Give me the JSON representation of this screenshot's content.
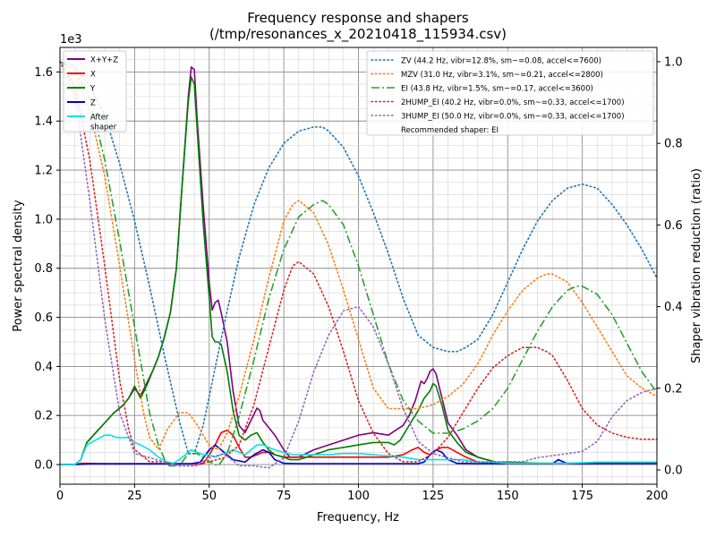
{
  "chart_data": {
    "type": "line",
    "title": "Frequency response and shapers",
    "subtitle": "(/tmp/resonances_x_20210418_115934.csv)",
    "xlabel": "Frequency, Hz",
    "ylabel": "Power spectral density",
    "y2label": "Shaper vibration reduction (ratio)",
    "y_scale_label": "1e3",
    "xlim": [
      0,
      200
    ],
    "ylim": [
      -0.08,
      1.7
    ],
    "y2lim": [
      -0.035,
      1.035
    ],
    "x_ticks": [
      0,
      25,
      50,
      75,
      100,
      125,
      150,
      175,
      200
    ],
    "x_tick_labels": [
      "0",
      "25",
      "50",
      "75",
      "100",
      "125",
      "150",
      "175",
      "200"
    ],
    "y_ticks": [
      0,
      0.2,
      0.4,
      0.6,
      0.8,
      1.0,
      1.2,
      1.4,
      1.6
    ],
    "y_tick_labels": [
      "0.0",
      "0.2",
      "0.4",
      "0.6",
      "0.8",
      "1.0",
      "1.2",
      "1.4",
      "1.6"
    ],
    "y2_ticks": [
      0,
      0.2,
      0.4,
      0.6,
      0.8,
      1.0
    ],
    "y2_tick_labels": [
      "0.0",
      "0.2",
      "0.4",
      "0.6",
      "0.8",
      "1.0"
    ],
    "grid": true,
    "legend_left_placement": "top-left",
    "legend_right_placement": "top-right",
    "psd_series": [
      {
        "name": "X+Y+Z",
        "color": "#800080",
        "style": "solid",
        "x": [
          0,
          5,
          7,
          9,
          12,
          15,
          18,
          21,
          23,
          25,
          27,
          29,
          31,
          33,
          35,
          37,
          39,
          41,
          43,
          44,
          45,
          46,
          48,
          50,
          51,
          52,
          53,
          54,
          56,
          58,
          60,
          62,
          64,
          66,
          67,
          68,
          70,
          72,
          75,
          77,
          80,
          85,
          90,
          95,
          100,
          105,
          110,
          115,
          117,
          119,
          120,
          121,
          122,
          123,
          124,
          125,
          126,
          128,
          130,
          133,
          136,
          140,
          143,
          146,
          150,
          160,
          170,
          180,
          200
        ],
        "y": [
          0,
          0,
          0.02,
          0.09,
          0.13,
          0.17,
          0.21,
          0.24,
          0.27,
          0.31,
          0.28,
          0.33,
          0.38,
          0.44,
          0.52,
          0.62,
          0.8,
          1.15,
          1.5,
          1.62,
          1.61,
          1.4,
          1.05,
          0.74,
          0.63,
          0.66,
          0.67,
          0.62,
          0.5,
          0.3,
          0.16,
          0.13,
          0.18,
          0.23,
          0.22,
          0.18,
          0.15,
          0.12,
          0.06,
          0.03,
          0.03,
          0.06,
          0.08,
          0.1,
          0.12,
          0.13,
          0.12,
          0.16,
          0.2,
          0.26,
          0.3,
          0.34,
          0.33,
          0.35,
          0.38,
          0.39,
          0.37,
          0.27,
          0.17,
          0.12,
          0.06,
          0.03,
          0.02,
          0.01,
          0.01,
          0.005,
          0.005,
          0.005,
          0.005
        ]
      },
      {
        "name": "X",
        "color": "#ff0000",
        "style": "solid",
        "x": [
          0,
          5,
          7,
          9,
          12,
          15,
          20,
          25,
          30,
          35,
          38,
          40,
          42,
          44,
          46,
          48,
          50,
          52,
          54,
          56,
          58,
          60,
          62,
          64,
          66,
          68,
          70,
          72,
          75,
          80,
          85,
          90,
          95,
          100,
          105,
          110,
          115,
          118,
          120,
          122,
          124,
          126,
          128,
          130,
          133,
          136,
          140,
          145,
          150,
          160,
          170,
          200
        ],
        "y": [
          0,
          0,
          0.005,
          0.005,
          0.004,
          0.003,
          0.003,
          0.003,
          0.003,
          0.003,
          0.003,
          0.003,
          0.003,
          0.003,
          0.003,
          0.005,
          0.04,
          0.08,
          0.13,
          0.14,
          0.12,
          0.07,
          0.03,
          0.03,
          0.04,
          0.05,
          0.05,
          0.04,
          0.03,
          0.03,
          0.03,
          0.03,
          0.03,
          0.03,
          0.03,
          0.03,
          0.04,
          0.06,
          0.07,
          0.05,
          0.04,
          0.06,
          0.07,
          0.07,
          0.05,
          0.03,
          0.01,
          0.005,
          0.004,
          0.004,
          0.004,
          0.004
        ]
      },
      {
        "name": "Y",
        "color": "#008000",
        "style": "solid",
        "x": [
          0,
          5,
          7,
          9,
          12,
          15,
          18,
          21,
          23,
          25,
          27,
          29,
          31,
          33,
          35,
          37,
          39,
          41,
          43,
          44,
          45,
          46,
          48,
          50,
          51,
          52,
          53,
          54,
          56,
          58,
          60,
          62,
          64,
          66,
          68,
          70,
          72,
          75,
          77,
          80,
          85,
          90,
          95,
          100,
          105,
          110,
          112,
          114,
          116,
          118,
          120,
          122,
          124,
          125,
          126,
          128,
          130,
          133,
          136,
          140,
          143,
          146,
          150,
          160,
          170,
          180,
          200
        ],
        "y": [
          0,
          0,
          0.02,
          0.09,
          0.13,
          0.17,
          0.21,
          0.24,
          0.27,
          0.32,
          0.27,
          0.32,
          0.38,
          0.44,
          0.52,
          0.62,
          0.8,
          1.15,
          1.48,
          1.58,
          1.55,
          1.36,
          0.98,
          0.68,
          0.52,
          0.5,
          0.5,
          0.49,
          0.38,
          0.22,
          0.12,
          0.1,
          0.12,
          0.13,
          0.09,
          0.06,
          0.04,
          0.03,
          0.02,
          0.02,
          0.04,
          0.06,
          0.07,
          0.08,
          0.09,
          0.09,
          0.08,
          0.1,
          0.14,
          0.18,
          0.22,
          0.27,
          0.3,
          0.33,
          0.32,
          0.24,
          0.14,
          0.09,
          0.05,
          0.03,
          0.02,
          0.01,
          0.01,
          0.005,
          0.005,
          0.005,
          0.005
        ]
      },
      {
        "name": "Z",
        "color": "#0000cd",
        "style": "solid",
        "x": [
          0,
          5,
          10,
          20,
          30,
          40,
          44,
          47,
          50,
          52,
          55,
          58,
          62,
          65,
          68,
          70,
          72,
          75,
          80,
          90,
          100,
          110,
          120,
          122,
          124,
          126,
          128,
          130,
          133,
          140,
          160,
          165,
          167,
          170,
          200
        ],
        "y": [
          0,
          0,
          0.003,
          0.003,
          0.003,
          0.003,
          0.003,
          0.01,
          0.06,
          0.08,
          0.05,
          0.02,
          0.01,
          0.04,
          0.06,
          0.05,
          0.02,
          0.005,
          0.004,
          0.004,
          0.004,
          0.004,
          0.004,
          0.01,
          0.04,
          0.06,
          0.05,
          0.02,
          0.005,
          0.004,
          0.004,
          0.004,
          0.02,
          0.004,
          0.004
        ]
      },
      {
        "name": "After\nshaper",
        "color": "#00e5e5",
        "style": "solid",
        "x": [
          0,
          5,
          7,
          9,
          12,
          15,
          17,
          19,
          21,
          23,
          25,
          27,
          30,
          33,
          36,
          38,
          40,
          42,
          44,
          46,
          48,
          50,
          52,
          54,
          56,
          58,
          60,
          62,
          64,
          66,
          68,
          70,
          72,
          75,
          78,
          80,
          85,
          90,
          95,
          100,
          105,
          110,
          115,
          120,
          125,
          130,
          135,
          140,
          145,
          150,
          160,
          170,
          180,
          190,
          200
        ],
        "y": [
          0,
          0,
          0.02,
          0.08,
          0.1,
          0.12,
          0.12,
          0.11,
          0.11,
          0.11,
          0.09,
          0.08,
          0.06,
          0.03,
          0.01,
          0.005,
          0.02,
          0.04,
          0.06,
          0.05,
          0.04,
          0.04,
          0.03,
          0.04,
          0.05,
          0.06,
          0.05,
          0.04,
          0.06,
          0.08,
          0.08,
          0.07,
          0.06,
          0.05,
          0.04,
          0.04,
          0.04,
          0.04,
          0.045,
          0.045,
          0.04,
          0.035,
          0.03,
          0.02,
          0.02,
          0.02,
          0.02,
          0.01,
          0.01,
          0.005,
          0.005,
          0.005,
          0.01,
          0.01,
          0.01
        ]
      }
    ],
    "shaper_series": [
      {
        "name": "ZV (44.2 Hz, vibr=12.8%, sm~=0.08, accel<=7600)",
        "color": "#1f77b4",
        "style": "dotted",
        "x": [
          0,
          5,
          10,
          15,
          20,
          25,
          30,
          35,
          40,
          43,
          45,
          48,
          52,
          56,
          60,
          65,
          70,
          75,
          80,
          85,
          88,
          90,
          95,
          100,
          105,
          110,
          115,
          120,
          125,
          130,
          133,
          136,
          140,
          145,
          150,
          155,
          160,
          165,
          170,
          175,
          180,
          185,
          190,
          195,
          200
        ],
        "y": [
          1.0,
          0.99,
          0.94,
          0.87,
          0.75,
          0.61,
          0.45,
          0.28,
          0.12,
          0.04,
          0.04,
          0.11,
          0.25,
          0.39,
          0.52,
          0.65,
          0.74,
          0.8,
          0.83,
          0.84,
          0.84,
          0.83,
          0.79,
          0.72,
          0.63,
          0.53,
          0.42,
          0.33,
          0.3,
          0.29,
          0.29,
          0.3,
          0.32,
          0.38,
          0.46,
          0.54,
          0.61,
          0.66,
          0.69,
          0.7,
          0.69,
          0.65,
          0.6,
          0.54,
          0.47
        ]
      },
      {
        "name": "MZV (31.0 Hz, vibr=3.1%, sm~=0.21, accel<=2800)",
        "color": "#ff7f0e",
        "style": "dotted",
        "x": [
          0,
          5,
          10,
          15,
          20,
          25,
          28,
          30,
          33,
          36,
          40,
          43,
          46,
          50,
          53,
          56,
          60,
          65,
          70,
          75,
          78,
          80,
          85,
          90,
          95,
          100,
          105,
          110,
          115,
          120,
          125,
          130,
          135,
          140,
          145,
          150,
          155,
          160,
          163,
          165,
          170,
          175,
          180,
          185,
          190,
          195,
          200
        ],
        "y": [
          1.0,
          0.97,
          0.88,
          0.72,
          0.5,
          0.27,
          0.14,
          0.08,
          0.05,
          0.1,
          0.14,
          0.14,
          0.11,
          0.06,
          0.05,
          0.09,
          0.18,
          0.32,
          0.47,
          0.61,
          0.65,
          0.66,
          0.63,
          0.55,
          0.44,
          0.32,
          0.2,
          0.15,
          0.15,
          0.15,
          0.16,
          0.18,
          0.21,
          0.26,
          0.33,
          0.39,
          0.44,
          0.47,
          0.48,
          0.48,
          0.46,
          0.41,
          0.35,
          0.29,
          0.23,
          0.2,
          0.18
        ]
      },
      {
        "name": "EI (43.8 Hz, vibr=1.5%, sm~=0.17, accel<=3600)",
        "color": "#2ca02c",
        "style": "dashdot",
        "x": [
          0,
          5,
          10,
          15,
          20,
          25,
          30,
          33,
          36,
          40,
          43,
          46,
          50,
          53,
          56,
          60,
          65,
          70,
          75,
          80,
          85,
          88,
          90,
          95,
          100,
          105,
          110,
          115,
          120,
          125,
          130,
          135,
          140,
          145,
          150,
          155,
          160,
          165,
          170,
          173,
          175,
          180,
          185,
          190,
          195,
          200
        ],
        "y": [
          1.0,
          0.98,
          0.91,
          0.76,
          0.56,
          0.35,
          0.14,
          0.06,
          0.01,
          0.01,
          0.04,
          0.04,
          0.02,
          0.01,
          0.04,
          0.13,
          0.27,
          0.42,
          0.54,
          0.62,
          0.65,
          0.66,
          0.65,
          0.6,
          0.5,
          0.38,
          0.26,
          0.17,
          0.12,
          0.09,
          0.09,
          0.1,
          0.12,
          0.15,
          0.2,
          0.27,
          0.34,
          0.4,
          0.44,
          0.45,
          0.45,
          0.43,
          0.38,
          0.31,
          0.24,
          0.19
        ]
      },
      {
        "name": "2HUMP_EI (40.2 Hz, vibr=0.0%, sm~=0.33, accel<=1700)",
        "color": "#d62728",
        "style": "dotted",
        "x": [
          0,
          5,
          10,
          15,
          20,
          23,
          25,
          30,
          35,
          40,
          45,
          50,
          55,
          60,
          65,
          70,
          75,
          78,
          80,
          85,
          90,
          95,
          100,
          105,
          110,
          115,
          120,
          125,
          130,
          135,
          140,
          145,
          150,
          155,
          160,
          163,
          165,
          170,
          175,
          180,
          185,
          190,
          195,
          200
        ],
        "y": [
          1.0,
          0.94,
          0.76,
          0.5,
          0.22,
          0.1,
          0.05,
          0.02,
          0.02,
          0.01,
          0.01,
          0.02,
          0.03,
          0.06,
          0.16,
          0.3,
          0.44,
          0.5,
          0.51,
          0.48,
          0.4,
          0.29,
          0.17,
          0.09,
          0.04,
          0.02,
          0.02,
          0.04,
          0.08,
          0.14,
          0.2,
          0.25,
          0.28,
          0.3,
          0.3,
          0.29,
          0.28,
          0.22,
          0.15,
          0.11,
          0.09,
          0.08,
          0.075,
          0.075
        ]
      },
      {
        "name": "3HUMP_EI (50.0 Hz, vibr=0.0%, sm~=0.33, accel<=1700)",
        "color": "#9467bd",
        "style": "dotted",
        "x": [
          0,
          5,
          10,
          15,
          20,
          25,
          30,
          35,
          40,
          45,
          50,
          55,
          60,
          65,
          70,
          75,
          80,
          85,
          90,
          95,
          100,
          105,
          110,
          115,
          120,
          125,
          130,
          135,
          140,
          145,
          150,
          155,
          160,
          165,
          170,
          175,
          180,
          185,
          190,
          195,
          200
        ],
        "y": [
          1.0,
          0.92,
          0.66,
          0.37,
          0.14,
          0.04,
          0.03,
          0.02,
          0.01,
          0.01,
          0.03,
          0.04,
          0.01,
          0.01,
          0.005,
          0.03,
          0.12,
          0.24,
          0.33,
          0.39,
          0.4,
          0.35,
          0.26,
          0.15,
          0.07,
          0.04,
          0.03,
          0.02,
          0.02,
          0.02,
          0.02,
          0.02,
          0.03,
          0.035,
          0.04,
          0.045,
          0.07,
          0.13,
          0.17,
          0.19,
          0.2
        ]
      }
    ],
    "right_legend_note": "Recommended shaper: EI"
  }
}
